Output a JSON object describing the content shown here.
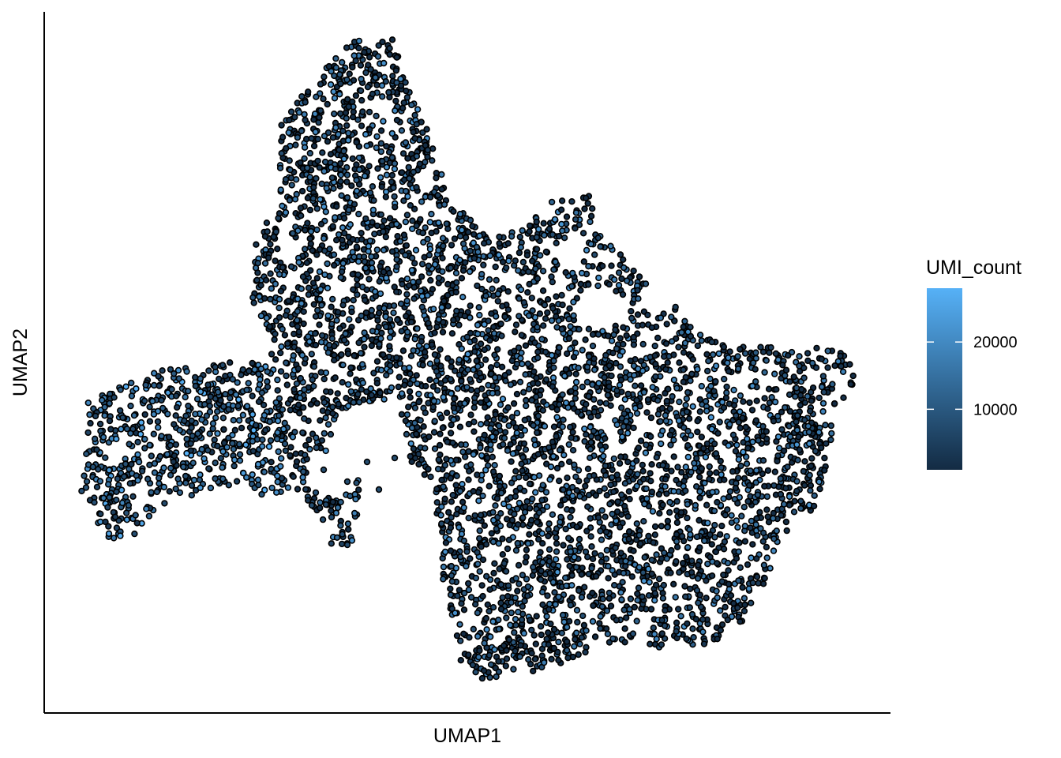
{
  "chart_data": {
    "type": "scatter",
    "title": "",
    "xlabel": "UMAP1",
    "ylabel": "UMAP2",
    "x_ticks_shown": false,
    "y_ticks_shown": false,
    "grid": false,
    "color_variable": "UMI_count",
    "legend": {
      "title": "UMI_count",
      "placement": "right",
      "type": "continuous colorbar",
      "range": [
        1000,
        28000
      ],
      "ticks": [
        {
          "value": 10000,
          "label": "10000"
        },
        {
          "value": 20000,
          "label": "20000"
        }
      ],
      "color_low": "#132B43",
      "color_high": "#56B1F7"
    },
    "point_outline_color": "#000000",
    "description_of_clusters": [
      {
        "region": "upper-middle lobe",
        "umap1_approx": [
          -3.5,
          0.5
        ],
        "umap2_approx": [
          0.5,
          9.5
        ]
      },
      {
        "region": "left arm",
        "umap1_approx": [
          -10.5,
          -3.0
        ],
        "umap2_approx": [
          -3.5,
          0.5
        ]
      },
      {
        "region": "right large body",
        "umap1_approx": [
          -1.0,
          10.5
        ],
        "umap2_approx": [
          -8.0,
          4.5
        ]
      }
    ]
  }
}
